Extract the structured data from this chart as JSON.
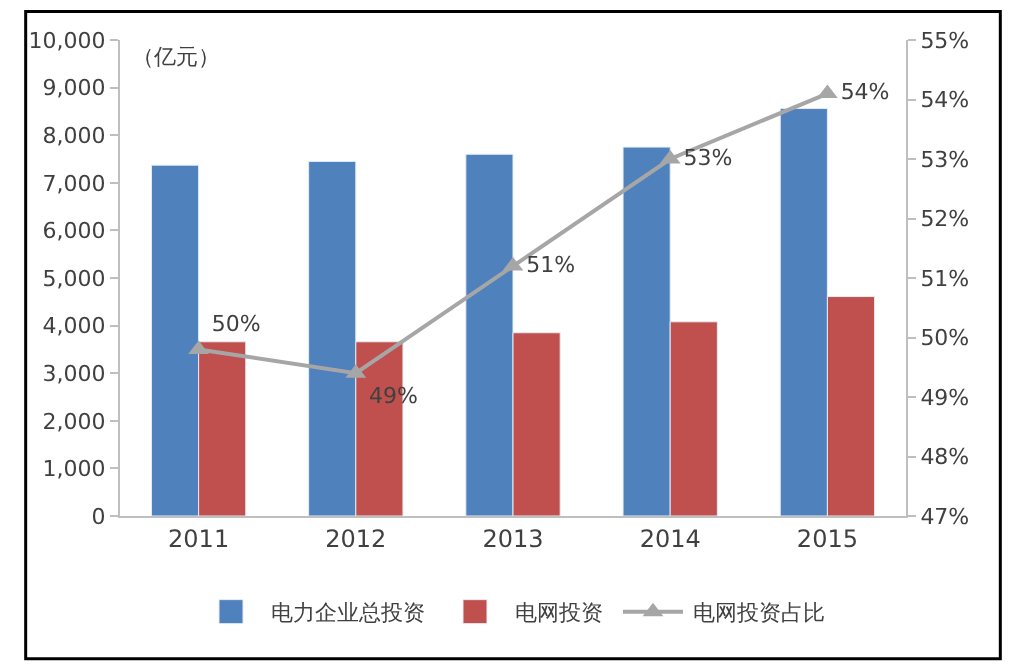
{
  "chart_data": {
    "type": "bar",
    "categories": [
      "2011",
      "2012",
      "2013",
      "2014",
      "2015"
    ],
    "series": [
      {
        "name": "电力企业总投资",
        "color": "#4f81bd",
        "values": [
          7370,
          7450,
          7600,
          7750,
          8560
        ]
      },
      {
        "name": "电网投资",
        "color": "#c0504d",
        "values": [
          3660,
          3660,
          3850,
          4080,
          4610
        ]
      },
      {
        "name": "电网投资占比",
        "type": "line",
        "axis": "y2",
        "color": "#a6a6a6",
        "marker": "triangle",
        "values": [
          49.8,
          49.4,
          51.2,
          53.0,
          54.1
        ],
        "value_labels": [
          "50%",
          "49%",
          "51%",
          "53%",
          "54%"
        ]
      }
    ],
    "ylim": [
      0,
      10000
    ],
    "yticks": [
      {
        "value": 0,
        "label": "0"
      },
      {
        "value": 1000,
        "label": "1,000"
      },
      {
        "value": 2000,
        "label": "2,000"
      },
      {
        "value": 3000,
        "label": "3,000"
      },
      {
        "value": 4000,
        "label": "4,000"
      },
      {
        "value": 5000,
        "label": "5,000"
      },
      {
        "value": 6000,
        "label": "6,000"
      },
      {
        "value": 7000,
        "label": "7,000"
      },
      {
        "value": 8000,
        "label": "8,000"
      },
      {
        "value": 9000,
        "label": "9,000"
      },
      {
        "value": 10000,
        "label": "10,000"
      }
    ],
    "y2lim": [
      47,
      55
    ],
    "y2ticks": [
      {
        "value": 47,
        "label": "47%"
      },
      {
        "value": 48,
        "label": "48%"
      },
      {
        "value": 49,
        "label": "49%"
      },
      {
        "value": 50,
        "label": "50%"
      },
      {
        "value": 51,
        "label": "51%"
      },
      {
        "value": 52,
        "label": "52%"
      },
      {
        "value": 53,
        "label": "53%"
      },
      {
        "value": 54,
        "label": "54%"
      },
      {
        "value": 55,
        "label": "55%"
      }
    ],
    "annotations": [
      "（亿元）"
    ],
    "legend": "bottom"
  }
}
